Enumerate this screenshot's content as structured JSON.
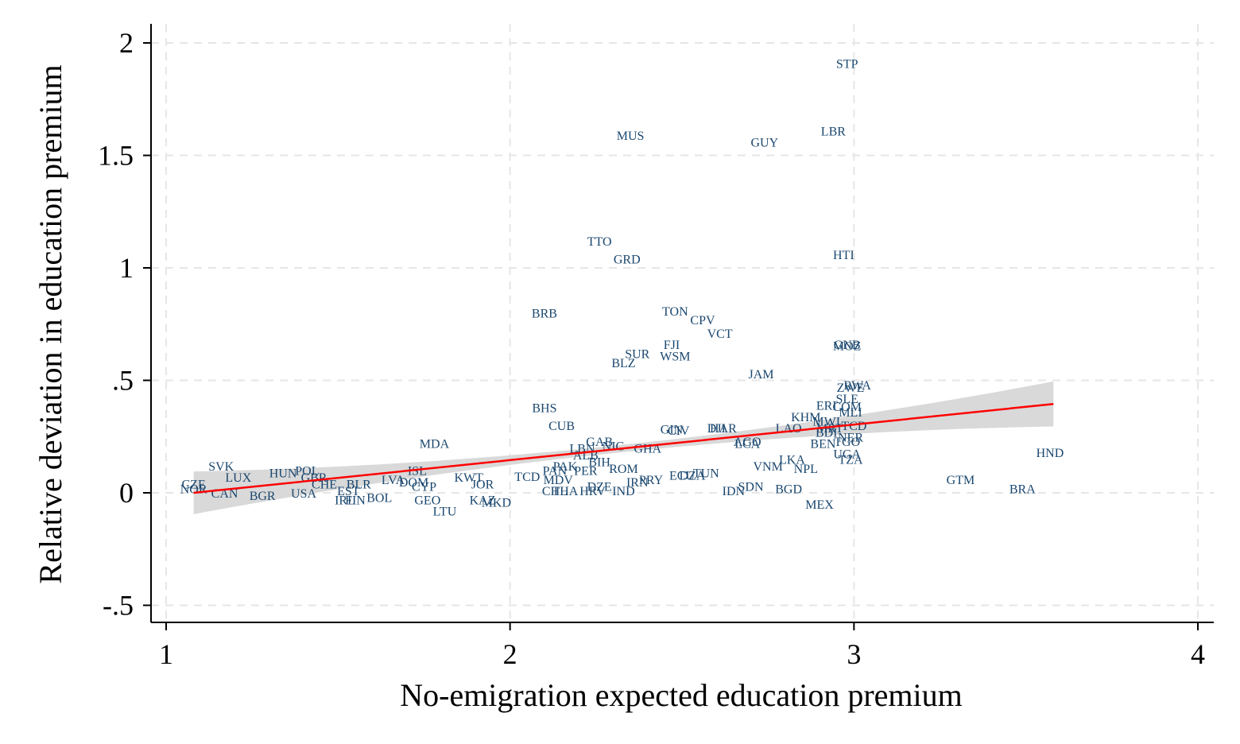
{
  "chart_data": {
    "type": "scatter",
    "xlabel": "No-emigration expected education premium",
    "ylabel": "Relative deviation in education premium",
    "xlim": [
      0.95,
      4.05
    ],
    "ylim": [
      -0.57,
      2.05
    ],
    "x_ticks": [
      1,
      2,
      3,
      4
    ],
    "y_ticks": [
      -0.5,
      0,
      0.5,
      1,
      1.5,
      2
    ],
    "y_tick_labels": [
      "-.5",
      "0",
      ".5",
      "1",
      "1.5",
      "2"
    ],
    "grid": true,
    "marker": "country-code labels",
    "colors": {
      "points": "#1a476f",
      "fit_line": "#ff0000",
      "confidence_band": "#d9d9d9"
    },
    "fit": {
      "type": "linear",
      "x_range": [
        1.08,
        3.58
      ],
      "y_at_start": 0.0,
      "y_at_end": 0.395,
      "ci_halfwidth_start": 0.095,
      "ci_halfwidth_mid": 0.02,
      "ci_halfwidth_end": 0.1,
      "x_mid": 2.05
    },
    "points": [
      {
        "label": "STP",
        "x": 2.98,
        "y": 1.91
      },
      {
        "label": "LBR",
        "x": 2.94,
        "y": 1.61
      },
      {
        "label": "MUS",
        "x": 2.35,
        "y": 1.59
      },
      {
        "label": "GUY",
        "x": 2.74,
        "y": 1.56
      },
      {
        "label": "TTO",
        "x": 2.26,
        "y": 1.12
      },
      {
        "label": "GRD",
        "x": 2.34,
        "y": 1.04
      },
      {
        "label": "HTI",
        "x": 2.97,
        "y": 1.06
      },
      {
        "label": "BRB",
        "x": 2.1,
        "y": 0.8
      },
      {
        "label": "TON",
        "x": 2.48,
        "y": 0.81
      },
      {
        "label": "CPV",
        "x": 2.56,
        "y": 0.77
      },
      {
        "label": "VCT",
        "x": 2.61,
        "y": 0.71
      },
      {
        "label": "FJI",
        "x": 2.47,
        "y": 0.66
      },
      {
        "label": "SUR",
        "x": 2.37,
        "y": 0.62
      },
      {
        "label": "WSM",
        "x": 2.48,
        "y": 0.61
      },
      {
        "label": "BLZ",
        "x": 2.33,
        "y": 0.58
      },
      {
        "label": "GNB",
        "x": 2.98,
        "y": 0.66
      },
      {
        "label": "MOZ",
        "x": 2.98,
        "y": 0.655
      },
      {
        "label": "JAM",
        "x": 2.73,
        "y": 0.53
      },
      {
        "label": "RWA",
        "x": 3.01,
        "y": 0.48
      },
      {
        "label": "ZWE",
        "x": 2.99,
        "y": 0.47
      },
      {
        "label": "SLE",
        "x": 2.98,
        "y": 0.42
      },
      {
        "label": "ERI",
        "x": 2.92,
        "y": 0.39
      },
      {
        "label": "COM",
        "x": 2.98,
        "y": 0.385
      },
      {
        "label": "MLI",
        "x": 2.99,
        "y": 0.36
      },
      {
        "label": "KHM",
        "x": 2.86,
        "y": 0.34
      },
      {
        "label": "MWI",
        "x": 2.92,
        "y": 0.32
      },
      {
        "label": "LAO",
        "x": 2.81,
        "y": 0.29
      },
      {
        "label": "MRT",
        "x": 2.93,
        "y": 0.29
      },
      {
        "label": "BDI",
        "x": 2.92,
        "y": 0.27
      },
      {
        "label": "TCD",
        "x": 3.0,
        "y": 0.3
      },
      {
        "label": "NER",
        "x": 2.99,
        "y": 0.25
      },
      {
        "label": "BEN",
        "x": 2.91,
        "y": 0.22
      },
      {
        "label": "TGO",
        "x": 2.98,
        "y": 0.23
      },
      {
        "label": "UGA",
        "x": 2.98,
        "y": 0.175
      },
      {
        "label": "TZA",
        "x": 2.99,
        "y": 0.15
      },
      {
        "label": "BHS",
        "x": 2.1,
        "y": 0.38
      },
      {
        "label": "CUB",
        "x": 2.15,
        "y": 0.3
      },
      {
        "label": "MDA",
        "x": 1.78,
        "y": 0.22
      },
      {
        "label": "GAB",
        "x": 2.26,
        "y": 0.23
      },
      {
        "label": "LBN",
        "x": 2.21,
        "y": 0.2
      },
      {
        "label": "NIC",
        "x": 2.3,
        "y": 0.21
      },
      {
        "label": "GHA",
        "x": 2.4,
        "y": 0.2
      },
      {
        "label": "ALB",
        "x": 2.22,
        "y": 0.17
      },
      {
        "label": "BIH",
        "x": 2.26,
        "y": 0.14
      },
      {
        "label": "GIN",
        "x": 2.47,
        "y": 0.285
      },
      {
        "label": "CIV",
        "x": 2.49,
        "y": 0.28
      },
      {
        "label": "DJI",
        "x": 2.6,
        "y": 0.29
      },
      {
        "label": "HAR",
        "x": 2.62,
        "y": 0.29
      },
      {
        "label": "AGO",
        "x": 2.69,
        "y": 0.23
      },
      {
        "label": "LCA",
        "x": 2.69,
        "y": 0.22
      },
      {
        "label": "HND",
        "x": 3.57,
        "y": 0.18
      },
      {
        "label": "LKA",
        "x": 2.82,
        "y": 0.15
      },
      {
        "label": "VNM",
        "x": 2.75,
        "y": 0.12
      },
      {
        "label": "NPL",
        "x": 2.86,
        "y": 0.11
      },
      {
        "label": "GTM",
        "x": 3.31,
        "y": 0.06
      },
      {
        "label": "BRA",
        "x": 3.49,
        "y": 0.02
      },
      {
        "label": "MEX",
        "x": 2.9,
        "y": -0.05
      },
      {
        "label": "TUN",
        "x": 2.57,
        "y": 0.09
      },
      {
        "label": "DZA",
        "x": 2.53,
        "y": 0.08
      },
      {
        "label": "ROM",
        "x": 2.33,
        "y": 0.11
      },
      {
        "label": "PAK",
        "x": 2.16,
        "y": 0.12
      },
      {
        "label": "PAN",
        "x": 2.13,
        "y": 0.1
      },
      {
        "label": "SVK",
        "x": 1.16,
        "y": 0.12
      },
      {
        "label": "HUN",
        "x": 1.34,
        "y": 0.09
      },
      {
        "label": "POL",
        "x": 1.41,
        "y": 0.1
      },
      {
        "label": "GBR",
        "x": 1.43,
        "y": 0.07
      },
      {
        "label": "LUX",
        "x": 1.21,
        "y": 0.07
      },
      {
        "label": "CZE",
        "x": 1.08,
        "y": 0.04
      },
      {
        "label": "NOR",
        "x": 1.08,
        "y": 0.02
      },
      {
        "label": "CAN",
        "x": 1.17,
        "y": 0.0
      },
      {
        "label": "BGR",
        "x": 1.28,
        "y": -0.01
      },
      {
        "label": "USA",
        "x": 1.4,
        "y": 0.0
      },
      {
        "label": "CHE",
        "x": 1.46,
        "y": 0.04
      },
      {
        "label": "BLR",
        "x": 1.56,
        "y": 0.04
      },
      {
        "label": "EST",
        "x": 1.53,
        "y": 0.01
      },
      {
        "label": "IRL",
        "x": 1.52,
        "y": -0.03
      },
      {
        "label": "FIN",
        "x": 1.55,
        "y": -0.03
      },
      {
        "label": "BOL",
        "x": 1.62,
        "y": -0.02
      },
      {
        "label": "LVA",
        "x": 1.66,
        "y": 0.06
      },
      {
        "label": "ISL",
        "x": 1.73,
        "y": 0.1
      },
      {
        "label": "DOM",
        "x": 1.72,
        "y": 0.05
      },
      {
        "label": "CYP",
        "x": 1.75,
        "y": 0.03
      },
      {
        "label": "KWT",
        "x": 1.88,
        "y": 0.07
      },
      {
        "label": "GEO",
        "x": 1.76,
        "y": -0.03
      },
      {
        "label": "LTU",
        "x": 1.81,
        "y": -0.08
      },
      {
        "label": "JOR",
        "x": 1.92,
        "y": 0.04
      },
      {
        "label": "KAZ",
        "x": 1.92,
        "y": -0.03
      },
      {
        "label": "MKD",
        "x": 1.96,
        "y": -0.04
      },
      {
        "label": "TCD",
        "x": 2.05,
        "y": 0.075
      },
      {
        "label": "CHL",
        "x": 2.13,
        "y": 0.01
      },
      {
        "label": "THA",
        "x": 2.16,
        "y": 0.01
      },
      {
        "label": "HRV",
        "x": 2.24,
        "y": 0.01
      },
      {
        "label": "IND",
        "x": 2.33,
        "y": 0.01
      },
      {
        "label": "SDN",
        "x": 2.7,
        "y": 0.03
      },
      {
        "label": "IDN",
        "x": 2.65,
        "y": 0.01
      },
      {
        "label": "BGD",
        "x": 2.81,
        "y": 0.02
      },
      {
        "label": "ECU",
        "x": 2.5,
        "y": 0.08
      },
      {
        "label": "IRN",
        "x": 2.37,
        "y": 0.05
      },
      {
        "label": "PER",
        "x": 2.22,
        "y": 0.1
      },
      {
        "label": "MDV",
        "x": 2.14,
        "y": 0.06
      },
      {
        "label": "DZE",
        "x": 2.26,
        "y": 0.03
      },
      {
        "label": "PRY",
        "x": 2.41,
        "y": 0.06
      }
    ]
  }
}
